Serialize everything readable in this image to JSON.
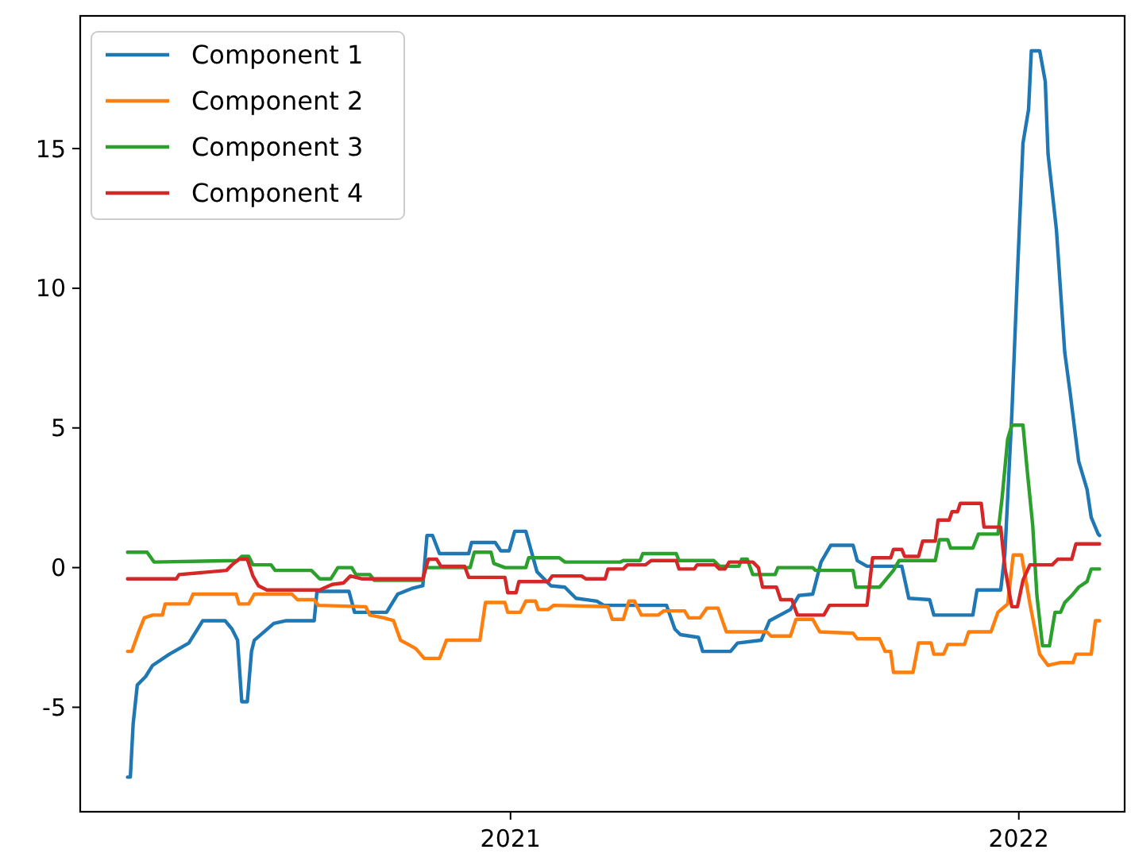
{
  "chart_data": {
    "type": "line",
    "xlim": [
      "2020-02-27",
      "2022-03-18"
    ],
    "xticks": [
      "2021",
      "2022"
    ],
    "ylim": [
      -8.74,
      19.75
    ],
    "yticks": [
      -5,
      0,
      5,
      10,
      15
    ],
    "grid": false,
    "legend": "top left",
    "series": [
      {
        "name": "Component 1",
        "color": "#1f77b4",
        "x": [
          "2020-04-01",
          "2020-04-03",
          "2020-04-05",
          "2020-04-08",
          "2020-04-14",
          "2020-04-19",
          "2020-05-01",
          "2020-05-15",
          "2020-05-25",
          "2020-06-10",
          "2020-06-15",
          "2020-06-19",
          "2020-06-22",
          "2020-06-26",
          "2020-06-29",
          "2020-07-01",
          "2020-07-15",
          "2020-07-24",
          "2020-08-01",
          "2020-08-06",
          "2020-08-13",
          "2020-08-15",
          "2020-09-07",
          "2020-09-11",
          "2020-10-04",
          "2020-10-12",
          "2020-10-22",
          "2020-10-30",
          "2020-11-02",
          "2020-11-06",
          "2020-11-11",
          "2020-12-02",
          "2020-12-04",
          "2020-12-21",
          "2020-12-25",
          "2020-12-31",
          "2021-01-04",
          "2021-01-12",
          "2021-01-20",
          "2021-01-30",
          "2021-02-09",
          "2021-02-17",
          "2021-03-04",
          "2021-03-09",
          "2021-04-23",
          "2021-04-29",
          "2021-05-03",
          "2021-05-16",
          "2021-05-19",
          "2021-06-08",
          "2021-06-13",
          "2021-06-30",
          "2021-07-06",
          "2021-07-21",
          "2021-07-27",
          "2021-08-06",
          "2021-08-12",
          "2021-08-19",
          "2021-09-04",
          "2021-09-07",
          "2021-09-14",
          "2021-10-09",
          "2021-10-14",
          "2021-10-29",
          "2021-11-01",
          "2021-11-29",
          "2021-12-02",
          "2021-12-19",
          "2021-12-22",
          "2021-12-27",
          "2021-12-31",
          "2022-01-04",
          "2022-01-08",
          "2022-01-10",
          "2022-01-16",
          "2022-01-20",
          "2022-01-22",
          "2022-01-28",
          "2022-02-03",
          "2022-02-07",
          "2022-02-13",
          "2022-02-19",
          "2022-02-22",
          "2022-02-27",
          "2022-02-28"
        ],
        "values": [
          -7.5,
          -7.5,
          -5.6,
          -4.2,
          -3.9,
          -3.5,
          -3.1,
          -2.7,
          -1.9,
          -1.9,
          -2.2,
          -2.6,
          -4.8,
          -4.8,
          -3.0,
          -2.6,
          -2.0,
          -1.9,
          -1.9,
          -1.9,
          -1.9,
          -0.85,
          -0.85,
          -1.6,
          -1.6,
          -0.95,
          -0.75,
          -0.65,
          1.15,
          1.15,
          0.5,
          0.5,
          0.9,
          0.9,
          0.6,
          0.6,
          1.3,
          1.3,
          -0.15,
          -0.65,
          -0.7,
          -1.1,
          -1.2,
          -1.35,
          -1.35,
          -2.2,
          -2.4,
          -2.5,
          -3.0,
          -3.0,
          -2.7,
          -2.6,
          -1.9,
          -1.5,
          -1.0,
          -0.95,
          0.2,
          0.8,
          0.8,
          0.25,
          0.05,
          0.05,
          -1.1,
          -1.15,
          -1.7,
          -1.7,
          -0.8,
          -0.8,
          0.5,
          5.5,
          10.5,
          15.2,
          16.4,
          18.5,
          18.5,
          17.4,
          14.8,
          12.1,
          7.7,
          6.2,
          3.8,
          2.8,
          1.8,
          1.2,
          1.15
        ]
      },
      {
        "name": "Component 2",
        "color": "#ff7f0e",
        "x": [
          "2020-04-01",
          "2020-04-04",
          "2020-04-09",
          "2020-04-13",
          "2020-04-19",
          "2020-04-26",
          "2020-04-28",
          "2020-05-15",
          "2020-05-18",
          "2020-06-18",
          "2020-06-20",
          "2020-06-27",
          "2020-07-01",
          "2020-07-28",
          "2020-08-01",
          "2020-08-13",
          "2020-08-16",
          "2020-09-19",
          "2020-09-22",
          "2020-10-02",
          "2020-10-09",
          "2020-10-14",
          "2020-10-25",
          "2020-10-31",
          "2020-11-11",
          "2020-11-16",
          "2020-12-10",
          "2020-12-14",
          "2020-12-28",
          "2020-12-30",
          "2021-01-08",
          "2021-01-12",
          "2021-01-19",
          "2021-01-21",
          "2021-01-28",
          "2021-02-01",
          "2021-03-12",
          "2021-03-15",
          "2021-03-23",
          "2021-03-27",
          "2021-03-31",
          "2021-04-05",
          "2021-04-17",
          "2021-04-21",
          "2021-05-06",
          "2021-05-09",
          "2021-05-17",
          "2021-05-22",
          "2021-05-30",
          "2021-06-05",
          "2021-07-04",
          "2021-07-07",
          "2021-07-21",
          "2021-07-25",
          "2021-08-06",
          "2021-08-11",
          "2021-09-04",
          "2021-09-07",
          "2021-09-23",
          "2021-09-27",
          "2021-10-01",
          "2021-10-03",
          "2021-10-17",
          "2021-10-21",
          "2021-10-30",
          "2021-11-01",
          "2021-11-08",
          "2021-11-11",
          "2021-11-23",
          "2021-11-26",
          "2021-12-12",
          "2021-12-17",
          "2021-12-24",
          "2021-12-28",
          "2022-01-03",
          "2022-01-09",
          "2022-01-16",
          "2022-01-22",
          "2022-01-31",
          "2022-02-09",
          "2022-02-11",
          "2022-02-22",
          "2022-02-25",
          "2022-02-28"
        ],
        "values": [
          -3.0,
          -3.0,
          -2.3,
          -1.8,
          -1.7,
          -1.7,
          -1.3,
          -1.3,
          -0.95,
          -0.95,
          -1.3,
          -1.3,
          -0.95,
          -0.95,
          -1.15,
          -1.15,
          -1.35,
          -1.4,
          -1.7,
          -1.8,
          -1.9,
          -2.6,
          -2.9,
          -3.25,
          -3.25,
          -2.6,
          -2.6,
          -1.25,
          -1.25,
          -1.6,
          -1.6,
          -1.2,
          -1.2,
          -1.5,
          -1.5,
          -1.35,
          -1.4,
          -1.85,
          -1.85,
          -1.2,
          -1.2,
          -1.7,
          -1.7,
          -1.55,
          -1.55,
          -1.8,
          -1.8,
          -1.45,
          -1.45,
          -2.3,
          -2.3,
          -2.45,
          -2.45,
          -1.85,
          -1.85,
          -2.3,
          -2.35,
          -2.55,
          -2.55,
          -3.0,
          -3.0,
          -3.75,
          -3.75,
          -2.7,
          -2.7,
          -3.1,
          -3.1,
          -2.75,
          -2.75,
          -2.3,
          -2.3,
          -1.6,
          -1.3,
          0.45,
          0.45,
          -1.3,
          -3.1,
          -3.5,
          -3.4,
          -3.4,
          -3.1,
          -3.1,
          -1.9,
          -1.9
        ]
      },
      {
        "name": "Component 3",
        "color": "#2ca02c",
        "x": [
          "2020-04-01",
          "2020-04-15",
          "2020-04-20",
          "2020-06-19",
          "2020-06-22",
          "2020-06-27",
          "2020-06-30",
          "2020-07-13",
          "2020-07-16",
          "2020-08-11",
          "2020-08-17",
          "2020-08-25",
          "2020-08-30",
          "2020-09-09",
          "2020-09-12",
          "2020-09-22",
          "2020-09-25",
          "2020-10-30",
          "2020-11-01",
          "2020-12-03",
          "2020-12-06",
          "2020-12-18",
          "2020-12-20",
          "2020-12-28",
          "2021-01-12",
          "2021-01-14",
          "2021-02-05",
          "2021-02-09",
          "2021-03-21",
          "2021-03-23",
          "2021-04-04",
          "2021-04-06",
          "2021-04-30",
          "2021-05-02",
          "2021-05-27",
          "2021-05-31",
          "2021-06-14",
          "2021-06-16",
          "2021-06-20",
          "2021-06-24",
          "2021-07-10",
          "2021-07-12",
          "2021-08-06",
          "2021-08-08",
          "2021-09-04",
          "2021-09-06",
          "2021-09-23",
          "2021-10-03",
          "2021-10-07",
          "2021-11-02",
          "2021-11-05",
          "2021-11-11",
          "2021-11-13",
          "2021-11-29",
          "2021-12-03",
          "2021-12-17",
          "2021-12-20",
          "2021-12-24",
          "2021-12-27",
          "2022-01-04",
          "2022-01-07",
          "2022-01-11",
          "2022-01-14",
          "2022-01-18",
          "2022-01-23",
          "2022-01-27",
          "2022-01-31",
          "2022-02-03",
          "2022-02-08",
          "2022-02-13",
          "2022-02-19",
          "2022-02-22",
          "2022-02-28"
        ],
        "values": [
          0.55,
          0.55,
          0.2,
          0.25,
          0.4,
          0.4,
          0.1,
          0.1,
          -0.1,
          -0.1,
          -0.4,
          -0.4,
          0.0,
          0.0,
          -0.25,
          -0.25,
          -0.45,
          -0.45,
          0.0,
          0.0,
          0.55,
          0.55,
          0.15,
          0.0,
          0.0,
          0.35,
          0.35,
          0.2,
          0.2,
          0.25,
          0.25,
          0.5,
          0.5,
          0.25,
          0.25,
          0.05,
          0.05,
          0.3,
          0.3,
          -0.25,
          -0.25,
          0.0,
          0.0,
          -0.1,
          -0.1,
          -0.7,
          -0.7,
          -0.1,
          0.25,
          0.25,
          1.0,
          1.0,
          0.7,
          0.7,
          1.2,
          1.2,
          2.5,
          4.6,
          5.1,
          5.1,
          3.5,
          1.5,
          -1.0,
          -2.8,
          -2.8,
          -1.6,
          -1.6,
          -1.25,
          -1.0,
          -0.7,
          -0.5,
          -0.05,
          -0.05
        ]
      },
      {
        "name": "Component 4",
        "color": "#d62728",
        "x": [
          "2020-04-01",
          "2020-05-06",
          "2020-05-08",
          "2020-06-11",
          "2020-06-15",
          "2020-06-20",
          "2020-06-26",
          "2020-06-30",
          "2020-07-04",
          "2020-07-10",
          "2020-08-17",
          "2020-08-26",
          "2020-09-03",
          "2020-09-08",
          "2020-09-16",
          "2020-10-30",
          "2020-11-03",
          "2020-11-09",
          "2020-11-12",
          "2020-11-29",
          "2020-12-02",
          "2020-12-28",
          "2020-12-30",
          "2021-01-05",
          "2021-01-07",
          "2021-01-28",
          "2021-01-31",
          "2021-02-21",
          "2021-02-24",
          "2021-03-10",
          "2021-03-12",
          "2021-03-23",
          "2021-03-26",
          "2021-04-08",
          "2021-04-12",
          "2021-04-30",
          "2021-05-02",
          "2021-05-13",
          "2021-05-15",
          "2021-05-28",
          "2021-05-31",
          "2021-06-04",
          "2021-06-07",
          "2021-06-24",
          "2021-06-28",
          "2021-07-01",
          "2021-07-11",
          "2021-07-14",
          "2021-07-22",
          "2021-07-26",
          "2021-08-14",
          "2021-08-18",
          "2021-09-14",
          "2021-09-18",
          "2021-10-01",
          "2021-10-03",
          "2021-10-09",
          "2021-10-11",
          "2021-10-21",
          "2021-10-24",
          "2021-11-02",
          "2021-11-04",
          "2021-11-12",
          "2021-11-14",
          "2021-11-18",
          "2021-11-20",
          "2021-12-05",
          "2021-12-07",
          "2021-12-19",
          "2021-12-22",
          "2021-12-27",
          "2021-12-31",
          "2022-01-04",
          "2022-01-09",
          "2022-01-25",
          "2022-01-29",
          "2022-02-08",
          "2022-02-11",
          "2022-02-28"
        ],
        "values": [
          -0.4,
          -0.4,
          -0.25,
          -0.1,
          0.1,
          0.3,
          0.3,
          -0.3,
          -0.65,
          -0.8,
          -0.8,
          -0.6,
          -0.55,
          -0.3,
          -0.4,
          -0.4,
          0.3,
          0.3,
          0.05,
          0.05,
          -0.35,
          -0.35,
          -0.9,
          -0.9,
          -0.5,
          -0.5,
          -0.3,
          -0.3,
          -0.4,
          -0.4,
          -0.05,
          -0.05,
          0.1,
          0.1,
          0.25,
          0.25,
          -0.05,
          -0.05,
          0.1,
          0.1,
          -0.05,
          -0.05,
          0.2,
          0.2,
          0.0,
          -0.7,
          -0.7,
          -1.15,
          -1.15,
          -1.7,
          -1.7,
          -1.35,
          -1.35,
          0.35,
          0.35,
          0.65,
          0.65,
          0.4,
          0.4,
          0.95,
          0.95,
          1.7,
          1.7,
          2.0,
          2.0,
          2.3,
          2.3,
          1.45,
          1.45,
          0.0,
          -1.4,
          -1.4,
          -0.45,
          0.1,
          0.1,
          0.3,
          0.3,
          0.85,
          0.85
        ]
      }
    ]
  }
}
